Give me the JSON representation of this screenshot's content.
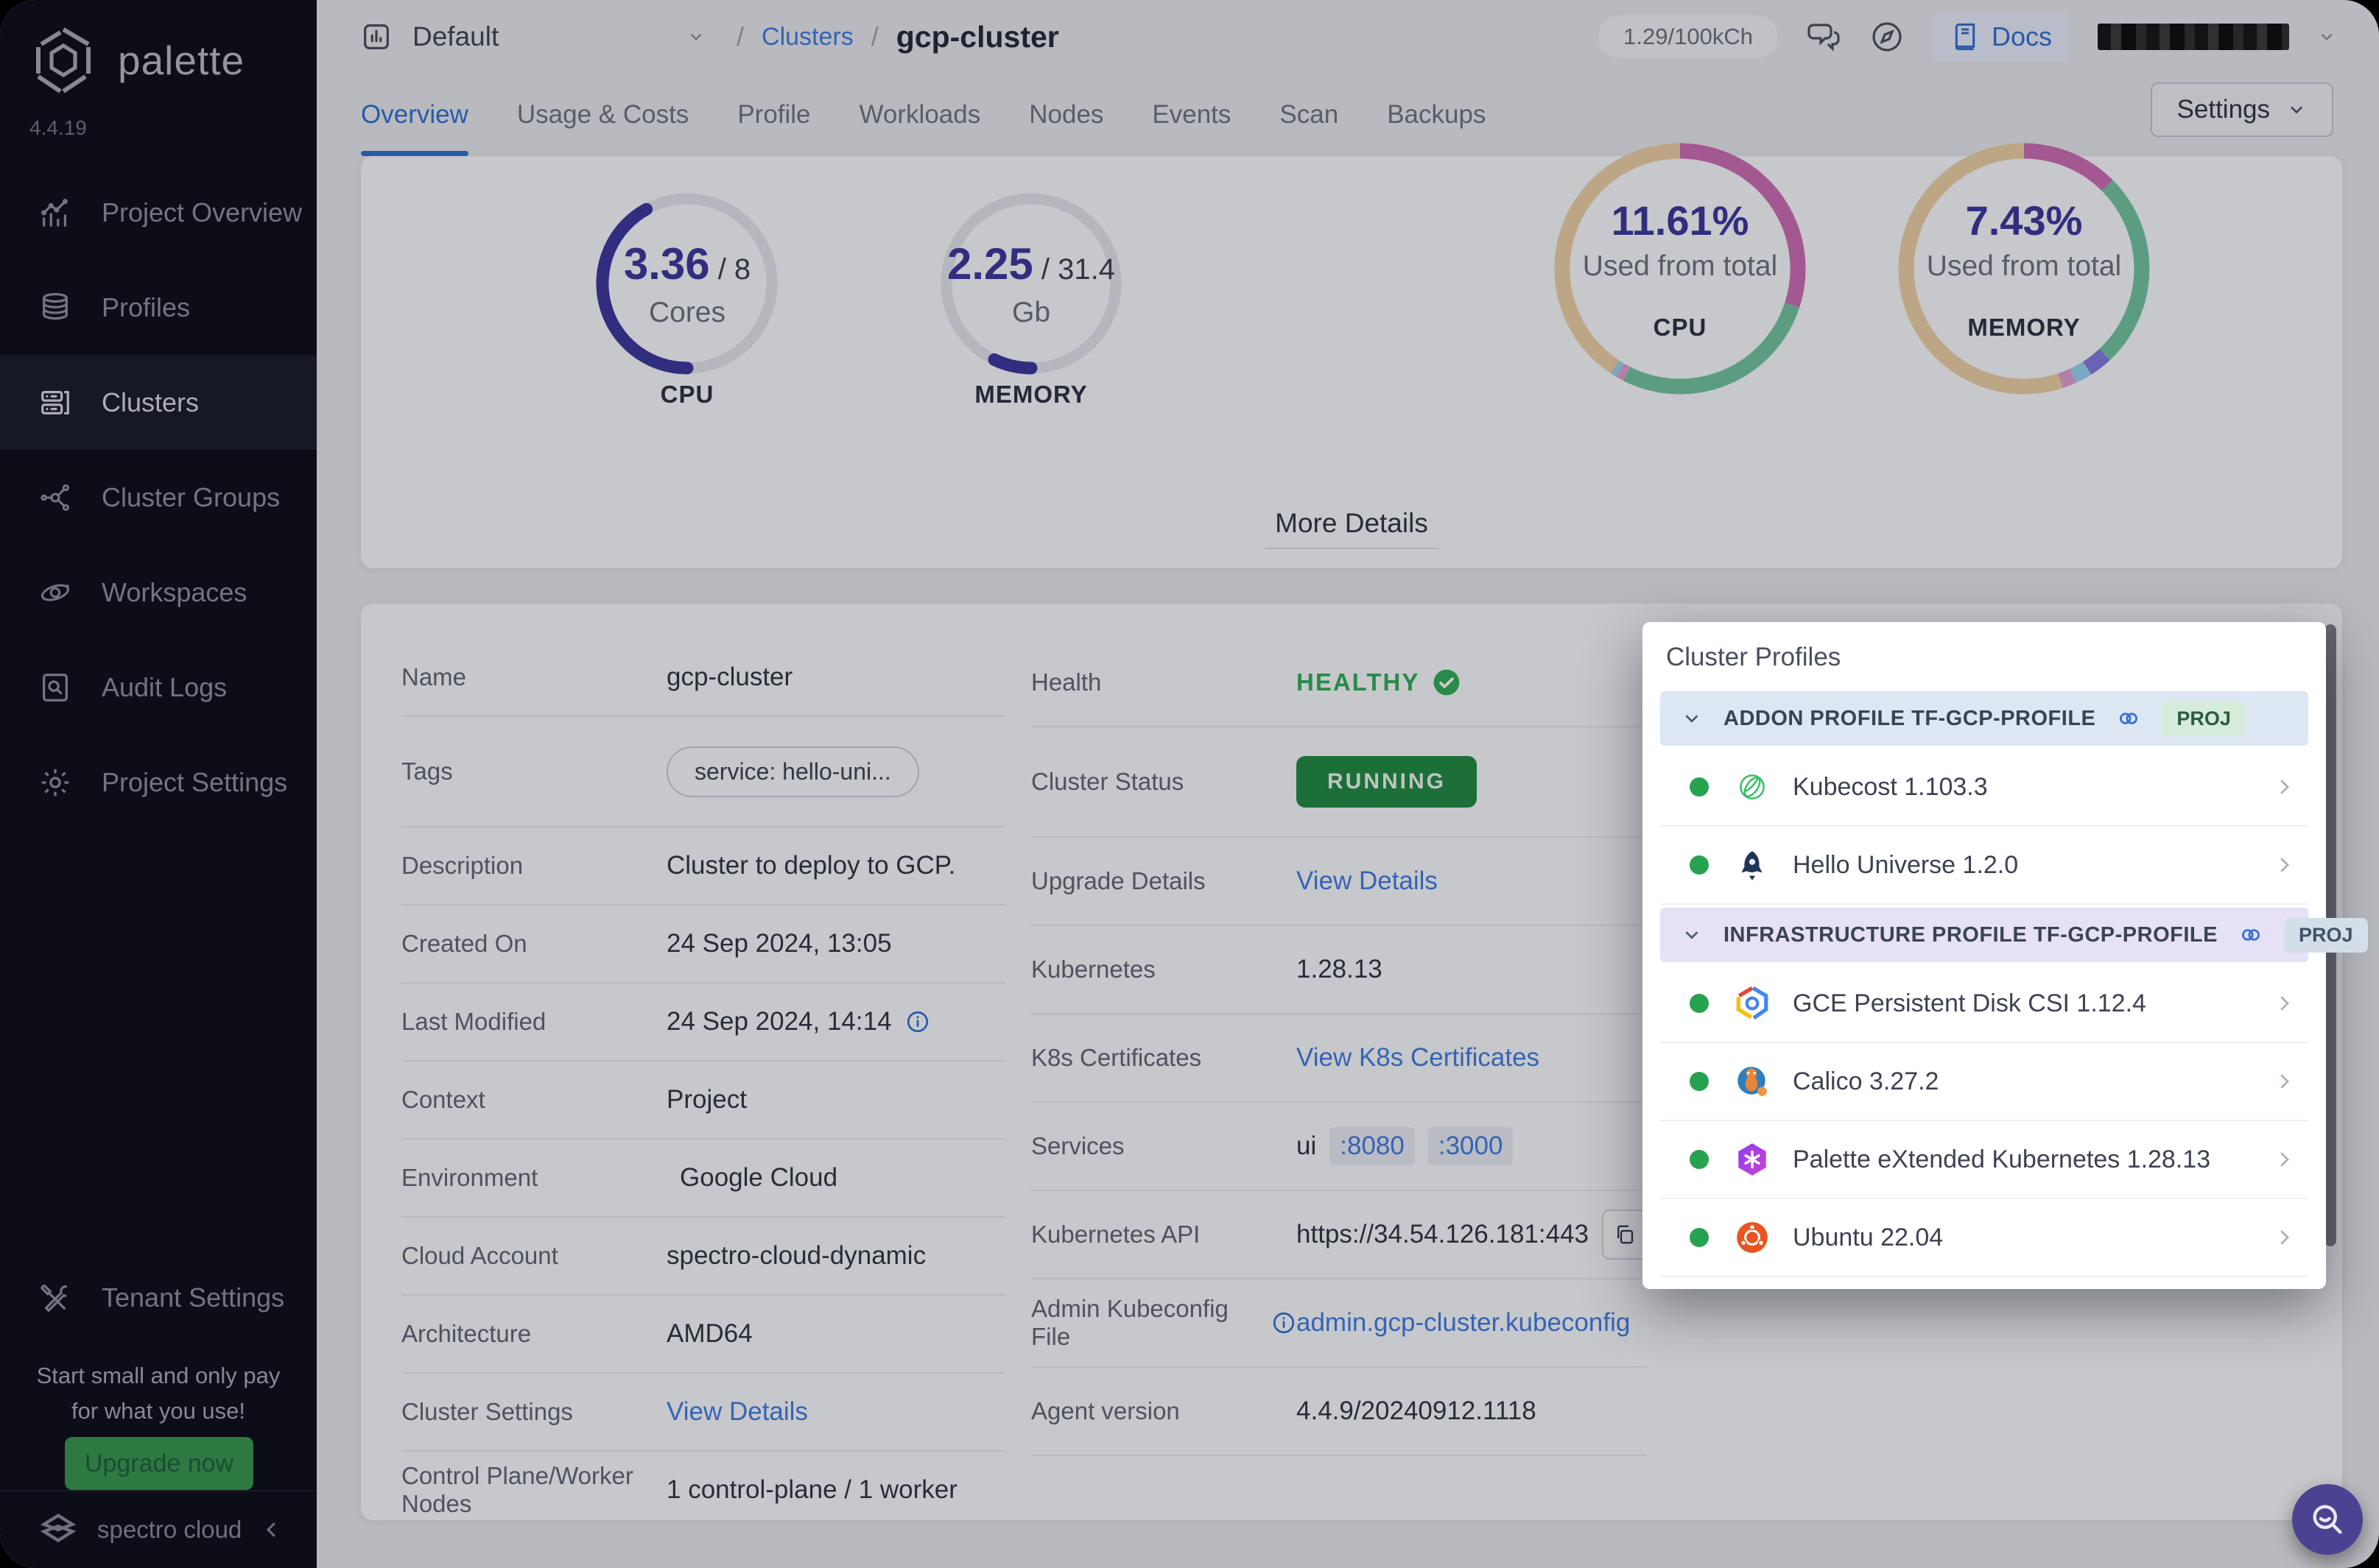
{
  "app": {
    "name": "palette",
    "version": "4.4.19",
    "brand": "spectro cloud"
  },
  "topbar": {
    "project_selector": "Default",
    "breadcrumb": {
      "section": "Clusters",
      "current": "gcp-cluster"
    },
    "usage_pill": "1.29/100kCh",
    "docs_label": "Docs"
  },
  "tabs": [
    {
      "label": "Overview",
      "active": true
    },
    {
      "label": "Usage & Costs",
      "active": false
    },
    {
      "label": "Profile",
      "active": false
    },
    {
      "label": "Workloads",
      "active": false
    },
    {
      "label": "Nodes",
      "active": false
    },
    {
      "label": "Events",
      "active": false
    },
    {
      "label": "Scan",
      "active": false
    },
    {
      "label": "Backups",
      "active": false
    }
  ],
  "settings_button_label": "Settings",
  "sidebar": {
    "menu": [
      {
        "icon": "chart",
        "label": "Project Overview",
        "active": false
      },
      {
        "icon": "layers",
        "label": "Profiles",
        "active": false
      },
      {
        "icon": "server",
        "label": "Clusters",
        "active": true
      },
      {
        "icon": "network",
        "label": "Cluster Groups",
        "active": false
      },
      {
        "icon": "orbit",
        "label": "Workspaces",
        "active": false
      },
      {
        "icon": "audit",
        "label": "Audit Logs",
        "active": false
      },
      {
        "icon": "gear",
        "label": "Project Settings",
        "active": false
      }
    ],
    "tenant": {
      "icon": "tools",
      "label": "Tenant Settings"
    },
    "promo_line1": "Start small and only pay",
    "promo_line2": "for what you use!",
    "upgrade_label": "Upgrade now"
  },
  "chart_data": [
    {
      "type": "radial-gauge",
      "title": "CPU",
      "value": 3.36,
      "max": 8,
      "value_label": "3.36",
      "max_label": " / 8",
      "unit": "Cores",
      "color": "#3a369c",
      "track": "#e4e6ec"
    },
    {
      "type": "radial-gauge",
      "title": "MEMORY",
      "value": 2.25,
      "max": 31.4,
      "value_label": "2.25",
      "max_label": " / 31.4",
      "unit": "Gb",
      "color": "#3a369c",
      "track": "#e4e6ec"
    },
    {
      "type": "donut",
      "title": "CPU",
      "center": "11.61%",
      "subtitle": "Used from total",
      "segments": [
        {
          "name": "used-1",
          "color": "#ce6cb2",
          "frac": 0.3
        },
        {
          "name": "used-2",
          "color": "#71c59f",
          "frac": 0.275
        },
        {
          "name": "used-3",
          "color": "#e0a0cc",
          "frac": 0.01
        },
        {
          "name": "used-4",
          "color": "#96d2f0",
          "frac": 0.008
        },
        {
          "name": "free",
          "color": "#ecd0a4",
          "frac": 0.407
        }
      ]
    },
    {
      "type": "donut",
      "title": "MEMORY",
      "center": "7.43%",
      "subtitle": "Used from total",
      "segments": [
        {
          "name": "used-1",
          "color": "#ce6cb2",
          "frac": 0.125
        },
        {
          "name": "used-2",
          "color": "#71c59f",
          "frac": 0.255
        },
        {
          "name": "used-3",
          "color": "#8379e0",
          "frac": 0.03
        },
        {
          "name": "used-4",
          "color": "#96d2f0",
          "frac": 0.022
        },
        {
          "name": "used-5",
          "color": "#e0a0cc",
          "frac": 0.018
        },
        {
          "name": "free",
          "color": "#ecd0a4",
          "frac": 0.55
        }
      ]
    }
  ],
  "more_details_label": "More Details",
  "details": {
    "left": [
      {
        "label": "Name",
        "value": "gcp-cluster",
        "type": "text"
      },
      {
        "label": "Tags",
        "value": "service: hello-uni...",
        "type": "pill"
      },
      {
        "label": "Description",
        "value": "Cluster to deploy to GCP.",
        "type": "text"
      },
      {
        "label": "Created On",
        "value": "24 Sep 2024, 13:05",
        "type": "text"
      },
      {
        "label": "Last Modified",
        "value": "24 Sep 2024, 14:14",
        "type": "text",
        "value_info": true
      },
      {
        "label": "Context",
        "value": "Project",
        "type": "text"
      },
      {
        "label": "Environment",
        "value": "Google Cloud",
        "type": "env"
      },
      {
        "label": "Cloud Account",
        "value": "spectro-cloud-dynamic",
        "type": "text"
      },
      {
        "label": "Architecture",
        "value": "AMD64",
        "type": "text"
      },
      {
        "label": "Cluster Settings",
        "value": "View Details",
        "type": "link"
      },
      {
        "label": "Control Plane/Worker Nodes",
        "value": "1 control-plane / 1 worker",
        "type": "text"
      }
    ],
    "right": [
      {
        "label": "Health",
        "value": "HEALTHY",
        "type": "health"
      },
      {
        "label": "Cluster Status",
        "value": "RUNNING",
        "type": "badge"
      },
      {
        "label": "Upgrade Details",
        "value": "View Details",
        "type": "link"
      },
      {
        "label": "Kubernetes",
        "value": "1.28.13",
        "type": "text"
      },
      {
        "label": "K8s Certificates",
        "value": "View K8s Certificates",
        "type": "link"
      },
      {
        "label": "Services",
        "value": "ui",
        "ports": [
          ":8080",
          ":3000"
        ],
        "type": "services"
      },
      {
        "label": "Kubernetes API",
        "value": "https://34.54.126.181:443",
        "type": "api"
      },
      {
        "label": "Admin Kubeconfig File",
        "value": "admin.gcp-cluster.kubeconfig",
        "type": "link",
        "label_info": true
      },
      {
        "label": "Agent version",
        "value": "4.4.9/20240912.1118",
        "type": "text"
      }
    ]
  },
  "profiles_panel": {
    "title": "Cluster Profiles",
    "groups": [
      {
        "kind": "addon",
        "title": "ADDON PROFILE TF-GCP-PROFILE",
        "badge": "PROJ",
        "items": [
          {
            "icon": "kubecost",
            "name": "Kubecost 1.103.3"
          },
          {
            "icon": "hello-universe",
            "name": "Hello Universe 1.2.0"
          }
        ]
      },
      {
        "kind": "infra",
        "title": "INFRASTRUCTURE PROFILE TF-GCP-PROFILE",
        "badge": "PROJ",
        "items": [
          {
            "icon": "gce-disk",
            "name": "GCE Persistent Disk CSI 1.12.4"
          },
          {
            "icon": "calico",
            "name": "Calico 3.27.2"
          },
          {
            "icon": "pxk",
            "name": "Palette eXtended Kubernetes 1.28.13"
          },
          {
            "icon": "ubuntu",
            "name": "Ubuntu 22.04"
          }
        ]
      }
    ]
  },
  "status_colors": {
    "healthy": "#2fae58",
    "running_badge": "#208a40",
    "link_blue": "#3f7ae0",
    "gauge_indigo": "#3a369c"
  }
}
